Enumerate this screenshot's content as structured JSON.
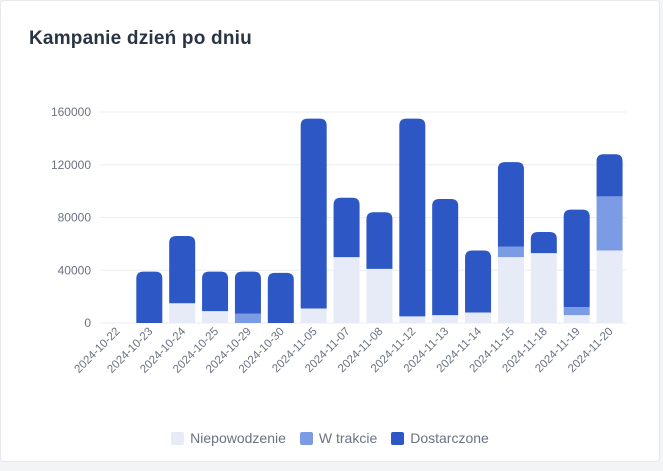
{
  "title": "Kampanie dzień po dniu",
  "chart_data": {
    "type": "bar",
    "stacked": true,
    "categories": [
      "2024-10-22",
      "2024-10-23",
      "2024-10-24",
      "2024-10-25",
      "2024-10-29",
      "2024-10-30",
      "2024-11-05",
      "2024-11-07",
      "2024-11-08",
      "2024-11-12",
      "2024-11-13",
      "2024-11-14",
      "2024-11-15",
      "2024-11-18",
      "2024-11-19",
      "2024-11-20"
    ],
    "series": [
      {
        "name": "Niepowodzenie",
        "color": "#e7ebf7",
        "values": [
          0,
          0,
          15000,
          9000,
          0,
          0,
          11000,
          50000,
          41000,
          5000,
          6000,
          8000,
          50000,
          53000,
          6000,
          55000
        ]
      },
      {
        "name": "W trakcie",
        "color": "#7b9be4",
        "values": [
          0,
          0,
          0,
          0,
          7000,
          0,
          0,
          0,
          0,
          0,
          0,
          0,
          8000,
          0,
          6000,
          41000
        ]
      },
      {
        "name": "Dostarczone",
        "color": "#2c57c4",
        "values": [
          0,
          39000,
          51000,
          30000,
          32000,
          38000,
          144000,
          45000,
          43000,
          150000,
          88000,
          47000,
          64000,
          16000,
          74000,
          32000
        ]
      }
    ],
    "yticks": [
      "0",
      "40000",
      "80000",
      "120000",
      "160000"
    ],
    "ylim": [
      0,
      160000
    ],
    "grid": true,
    "legend_position": "bottom"
  }
}
